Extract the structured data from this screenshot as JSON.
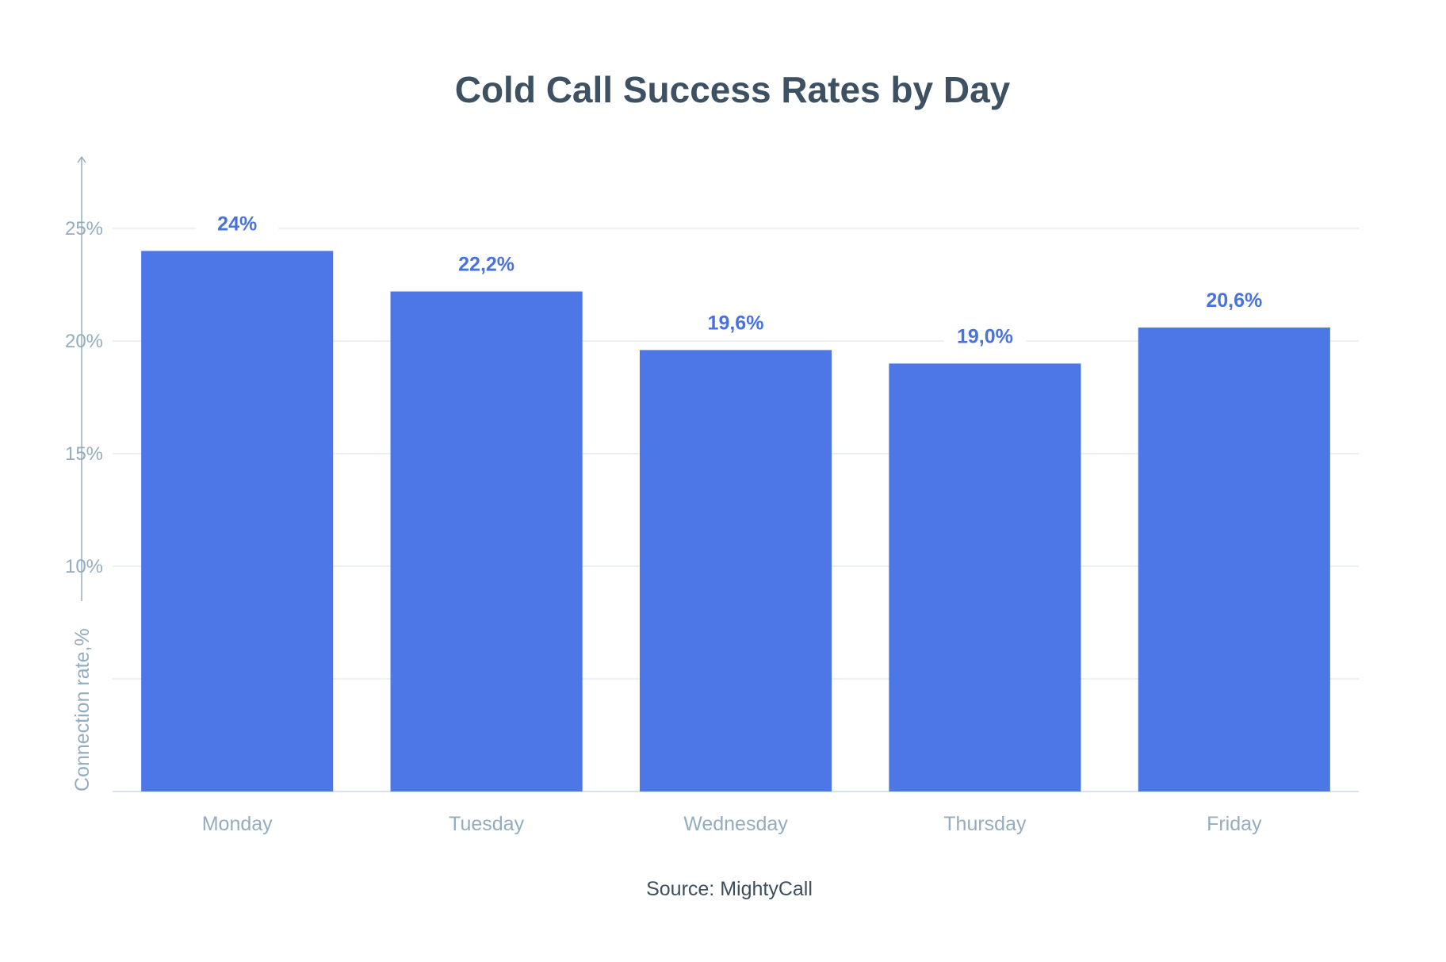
{
  "chart_data": {
    "type": "bar",
    "title": "Cold Call Success Rates by Day",
    "ylabel": "Connection rate,%",
    "xlabel": "",
    "categories": [
      "Monday",
      "Tuesday",
      "Wednesday",
      "Thursday",
      "Friday"
    ],
    "values": [
      24,
      22.2,
      19.6,
      19.0,
      20.6
    ],
    "data_labels": [
      "24%",
      "22,2%",
      "19,6%",
      "19,0%",
      "20,6%"
    ],
    "ylim": [
      0,
      25
    ],
    "yticks": [
      0,
      5,
      10,
      15,
      20,
      25
    ],
    "ytick_labels": [
      "",
      "",
      "10%",
      "15%",
      "20%",
      "25%"
    ],
    "grid": true,
    "legend": "none",
    "source": "Source: MightyCall",
    "colors": {
      "bar": "#4d76e6",
      "data_label": "#4a72dd",
      "title": "#3d5163",
      "axis_text": "#93adbf",
      "grid": "#d5e2ea",
      "source": "#3d4e5f"
    }
  }
}
